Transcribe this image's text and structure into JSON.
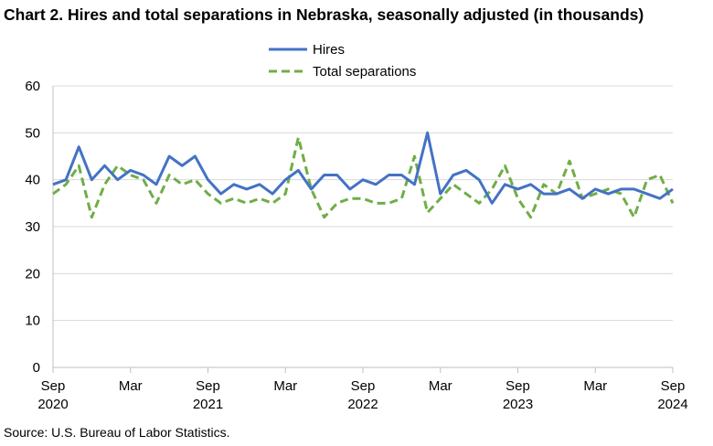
{
  "title": "Chart 2. Hires and total separations in Nebraska, seasonally adjusted (in thousands)",
  "source": "Source: U.S. Bureau of Labor Statistics.",
  "chart_data": {
    "type": "line",
    "title": "Chart 2. Hires and total separations in Nebraska, seasonally adjusted (in thousands)",
    "xlabel": "",
    "ylabel": "",
    "ylim": [
      0,
      60
    ],
    "yticks": [
      0,
      10,
      20,
      30,
      40,
      50,
      60
    ],
    "grid": true,
    "legend_position": "top-center",
    "x": [
      "2020-09",
      "2020-10",
      "2020-11",
      "2020-12",
      "2021-01",
      "2021-02",
      "2021-03",
      "2021-04",
      "2021-05",
      "2021-06",
      "2021-07",
      "2021-08",
      "2021-09",
      "2021-10",
      "2021-11",
      "2021-12",
      "2022-01",
      "2022-02",
      "2022-03",
      "2022-04",
      "2022-05",
      "2022-06",
      "2022-07",
      "2022-08",
      "2022-09",
      "2022-10",
      "2022-11",
      "2022-12",
      "2023-01",
      "2023-02",
      "2023-03",
      "2023-04",
      "2023-05",
      "2023-06",
      "2023-07",
      "2023-08",
      "2023-09",
      "2023-10",
      "2023-11",
      "2023-12",
      "2024-01",
      "2024-02",
      "2024-03",
      "2024-04",
      "2024-05",
      "2024-06",
      "2024-07",
      "2024-08",
      "2024-09"
    ],
    "x_tick_labels": [
      {
        "month": "Sep",
        "year": "2020"
      },
      {
        "month": "Mar",
        "year": ""
      },
      {
        "month": "Sep",
        "year": "2021"
      },
      {
        "month": "Mar",
        "year": ""
      },
      {
        "month": "Sep",
        "year": "2022"
      },
      {
        "month": "Mar",
        "year": ""
      },
      {
        "month": "Sep",
        "year": "2023"
      },
      {
        "month": "Mar",
        "year": ""
      },
      {
        "month": "Sep",
        "year": "2024"
      }
    ],
    "series": [
      {
        "name": "Hires",
        "color": "#4472C4",
        "style": "solid",
        "values": [
          39,
          40,
          47,
          40,
          43,
          40,
          42,
          41,
          39,
          45,
          43,
          45,
          40,
          37,
          39,
          38,
          39,
          37,
          40,
          42,
          38,
          41,
          41,
          38,
          40,
          39,
          41,
          41,
          39,
          50,
          37,
          41,
          42,
          40,
          35,
          39,
          38,
          39,
          37,
          37,
          38,
          36,
          38,
          37,
          38,
          38,
          37,
          36,
          38
        ]
      },
      {
        "name": "Total separations",
        "color": "#70AD47",
        "style": "dashed",
        "values": [
          37,
          39,
          43,
          32,
          39,
          43,
          41,
          40,
          35,
          41,
          39,
          40,
          37,
          35,
          36,
          35,
          36,
          35,
          37,
          49,
          38,
          32,
          35,
          36,
          36,
          35,
          35,
          36,
          45,
          33,
          36,
          39,
          37,
          35,
          38,
          43,
          36,
          32,
          39,
          37,
          44,
          36,
          37,
          38,
          37,
          32,
          40,
          41,
          35
        ]
      }
    ]
  }
}
